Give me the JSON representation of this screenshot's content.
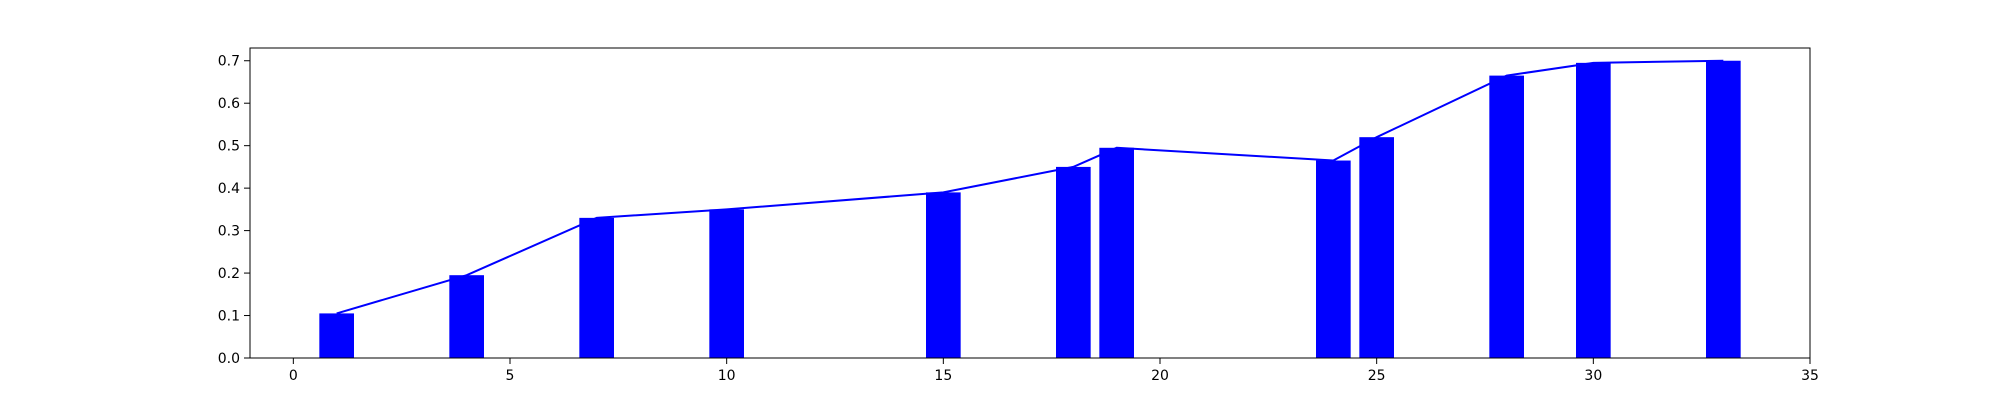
{
  "chart_data": {
    "type": "bar",
    "title": "",
    "xlabel": "",
    "ylabel": "",
    "xlim": [
      -1,
      35
    ],
    "ylim": [
      0,
      0.73
    ],
    "grid": false,
    "xticks": [
      0,
      5,
      10,
      15,
      20,
      25,
      30,
      35
    ],
    "yticks": [
      0.0,
      0.1,
      0.2,
      0.3,
      0.4,
      0.5,
      0.6,
      0.7
    ],
    "xtick_labels": [
      "0",
      "5",
      "10",
      "15",
      "20",
      "25",
      "30",
      "35"
    ],
    "ytick_labels": [
      "0.0",
      "0.1",
      "0.2",
      "0.3",
      "0.4",
      "0.5",
      "0.6",
      "0.7"
    ],
    "bar_width": 0.8,
    "x": [
      1,
      4,
      7,
      10,
      15,
      18,
      19,
      24,
      25,
      28,
      30,
      33
    ],
    "values": [
      0.105,
      0.195,
      0.33,
      0.35,
      0.39,
      0.45,
      0.495,
      0.465,
      0.52,
      0.665,
      0.695,
      0.7
    ],
    "bar_color": "#0000ff",
    "line_color": "#0000ff",
    "series": [
      {
        "type": "bar",
        "values": [
          0.105,
          0.195,
          0.33,
          0.35,
          0.39,
          0.45,
          0.495,
          0.465,
          0.52,
          0.665,
          0.695,
          0.7
        ]
      },
      {
        "type": "line",
        "values": [
          0.105,
          0.195,
          0.33,
          0.35,
          0.39,
          0.45,
          0.495,
          0.465,
          0.52,
          0.665,
          0.695,
          0.7
        ]
      }
    ]
  }
}
